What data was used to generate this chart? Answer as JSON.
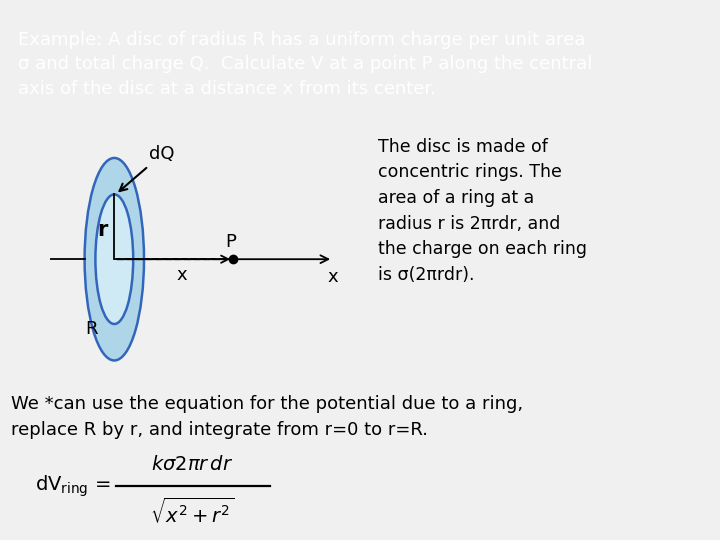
{
  "title_text": "Example: A disc of radius R has a uniform charge per unit area\nσ and total charge Q.  Calculate V at a point P along the central\naxis of the disc at a distance x from its center.",
  "title_bg": "#2e7d2e",
  "title_fg": "#ffffff",
  "body_bg": "#f0f0f0",
  "desc_text": "The disc is made of\nconcentric rings. The\narea of a ring at a\nradius r is 2πrdr, and\nthe charge on each ring\nis σ(2πrdr).",
  "bottom_text1": "We *can use the equation for the potential due to a ring,",
  "bottom_text2": "replace R by r, and integrate from r=0 to r=R.",
  "disc_fill": "#aed6e8",
  "disc_edge": "#3366bb",
  "ring_fill": "#d0eaf5",
  "ring_edge": "#3366bb"
}
